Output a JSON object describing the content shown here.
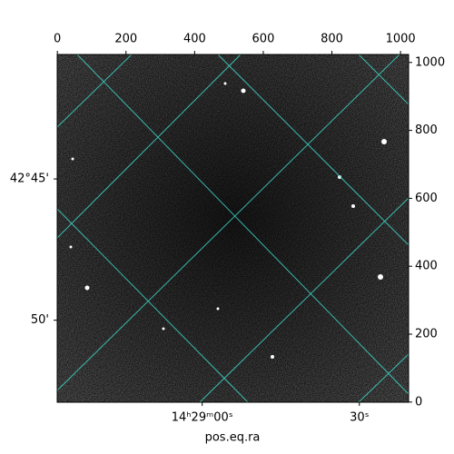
{
  "chart_data": {
    "type": "image",
    "xlabel": "pos.eq.ra",
    "xlim": [
      -0.5,
      1023.5
    ],
    "ylim": [
      -0.5,
      1023.5
    ],
    "xticks": [
      0,
      200,
      400,
      600,
      800,
      1000
    ],
    "yticks": [
      0,
      200,
      400,
      600,
      800,
      1000
    ],
    "ra_ticks": [
      {
        "value": 422,
        "label": "14ʰ29ᵐ00ˢ"
      },
      {
        "value": 880,
        "label": "30ˢ"
      }
    ],
    "dec_ticks": [
      {
        "value": 657,
        "label": "42°45'"
      },
      {
        "value": 241,
        "label": "50'"
      }
    ],
    "grid_color": "#40e0d0"
  }
}
